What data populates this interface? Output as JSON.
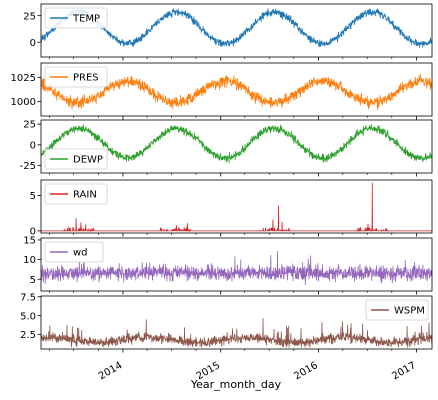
{
  "chart_data": {
    "type": "line",
    "xlabel": "Year_month_day",
    "x_range": [
      "2013-03-01",
      "2017-02-28"
    ],
    "x_ticks": [
      {
        "date": "2014-01-01",
        "label": "2014"
      },
      {
        "date": "2015-01-01",
        "label": "2015"
      },
      {
        "date": "2016-01-01",
        "label": "2016"
      },
      {
        "date": "2017-01-01",
        "label": "2017"
      }
    ],
    "x_tick_rotation_deg": 30,
    "legend_location": [
      "upper-left",
      "upper-left",
      "lower-left",
      "upper-left",
      "upper-left",
      "upper-right"
    ],
    "grid": false,
    "panels": [
      {
        "name": "TEMP",
        "color": "#1f77b4",
        "ylim": [
          -14,
          36
        ],
        "yticks": [
          {
            "v": 0,
            "label": "0"
          },
          {
            "v": 25,
            "label": "25"
          }
        ],
        "pattern": "annual cycle, summer peak",
        "approx_mean": 13.5,
        "approx_amplitude": 15,
        "approx_noise": 3,
        "approx_min": -12,
        "approx_max": 32
      },
      {
        "name": "PRES",
        "color": "#ff7f0e",
        "ylim": [
          985,
          1040
        ],
        "yticks": [
          {
            "v": 1000,
            "label": "1000"
          },
          {
            "v": 1025,
            "label": "1025"
          }
        ],
        "pattern": "annual cycle, winter peak",
        "approx_mean": 1010,
        "approx_amplitude": 11,
        "approx_noise": 5,
        "approx_min": 990,
        "approx_max": 1037
      },
      {
        "name": "DEWP",
        "color": "#2ca02c",
        "ylim": [
          -34,
          30
        ],
        "yticks": [
          {
            "v": -25,
            "label": "-25"
          },
          {
            "v": 0,
            "label": "0"
          },
          {
            "v": 25,
            "label": "25"
          }
        ],
        "pattern": "annual cycle, summer peak",
        "approx_mean": 2,
        "approx_amplitude": 18,
        "approx_noise": 4,
        "approx_min": -30,
        "approx_max": 25
      },
      {
        "name": "RAIN",
        "color": "#d62728",
        "ylim": [
          -0.3,
          7.2
        ],
        "yticks": [
          {
            "v": 0,
            "label": "0"
          },
          {
            "v": 5,
            "label": "5"
          }
        ],
        "pattern": "mostly zero with summer spikes",
        "spikes": [
          {
            "date": "2013-07-10",
            "value": 1.8
          },
          {
            "date": "2013-07-28",
            "value": 1.2
          },
          {
            "date": "2013-08-15",
            "value": 0.9
          },
          {
            "date": "2014-07-20",
            "value": 0.8
          },
          {
            "date": "2014-08-30",
            "value": 1.1
          },
          {
            "date": "2015-07-15",
            "value": 1.6
          },
          {
            "date": "2015-08-05",
            "value": 3.6
          },
          {
            "date": "2015-08-18",
            "value": 1.3
          },
          {
            "date": "2016-07-20",
            "value": 6.8
          },
          {
            "date": "2016-07-04",
            "value": 1.0
          }
        ]
      },
      {
        "name": "wd",
        "color": "#9467bd",
        "ylim": [
          2,
          15.5
        ],
        "yticks": [
          {
            "v": 5,
            "label": "5"
          },
          {
            "v": 10,
            "label": "10"
          },
          {
            "v": 15,
            "label": "15"
          }
        ],
        "pattern": "noisy around a constant level",
        "approx_mean": 6.5,
        "approx_noise": 1.6,
        "approx_min": 3,
        "approx_max": 14.5
      },
      {
        "name": "WSPM",
        "color": "#8c564b",
        "ylim": [
          0.6,
          7.6
        ],
        "yticks": [
          {
            "v": 2.5,
            "label": "2.5"
          },
          {
            "v": 5.0,
            "label": "5.0"
          },
          {
            "v": 7.5,
            "label": "7.5"
          }
        ],
        "pattern": "noisy, higher in spring",
        "approx_mean": 1.8,
        "approx_noise": 0.55,
        "approx_min": 0.8,
        "approx_max": 7.3
      }
    ]
  }
}
